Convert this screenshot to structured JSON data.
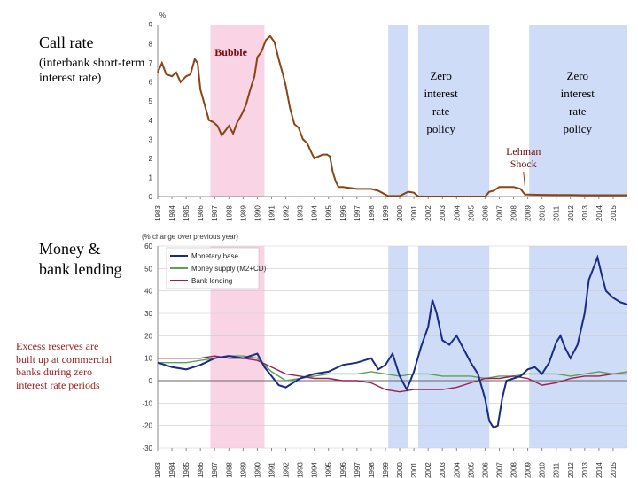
{
  "labels": {
    "call_title": "Call rate",
    "call_subtitle": "(interbank short-term interest rate)",
    "money_title": "Money & bank lending",
    "note": "Excess reserves are built up at commercial banks during zero interest rate periods"
  },
  "colors": {
    "bubble_shade": "#f9d4e4",
    "zero_shade": "#cfdcf7",
    "call_line": "#8a4416",
    "monetary_base": "#1a2b86",
    "money_supply": "#5ca055",
    "bank_lending": "#9b2050"
  },
  "chart_data": [
    {
      "type": "line",
      "title": "Call rate",
      "subtitle": "(interbank short-term interest rate)",
      "ylabel": "%",
      "ylim": [
        0,
        9
      ],
      "yticks": [
        "0",
        "1",
        "2",
        "3",
        "4",
        "5",
        "6",
        "7",
        "8",
        "9"
      ],
      "xlim": [
        1983,
        2016
      ],
      "xticks": [
        "1983",
        "1984",
        "1985",
        "1986",
        "1987",
        "1988",
        "1989",
        "1990",
        "1991",
        "1992",
        "1993",
        "1994",
        "1995",
        "1996",
        "1997",
        "1998",
        "1999",
        "2000",
        "2001",
        "2002",
        "2003",
        "2004",
        "2005",
        "2006",
        "2007",
        "2008",
        "2009",
        "2010",
        "2011",
        "2012",
        "2013",
        "2014",
        "2015"
      ],
      "shaded": [
        {
          "label": "Bubble",
          "from": 1986.7,
          "to": 1990.5,
          "kind": "bubble"
        },
        {
          "label": "Zero interest rate policy",
          "from": 1999.2,
          "to": 2000.6,
          "kind": "zero"
        },
        {
          "label": "Zero interest rate policy",
          "from": 2001.3,
          "to": 2006.3,
          "kind": "zero"
        },
        {
          "label": "Zero interest rate policy",
          "from": 2009.1,
          "to": 2016.0,
          "kind": "zero"
        }
      ],
      "annotations": {
        "bubble": "Bubble",
        "zero_1": [
          "Zero",
          "interest",
          "rate",
          "policy"
        ],
        "zero_2": [
          "Zero",
          "interest",
          "rate",
          "policy"
        ],
        "lehman": [
          "Lehman",
          "Shock"
        ]
      },
      "series": [
        {
          "name": "Call rate",
          "x": [
            1983,
            1983.3,
            1983.6,
            1984,
            1984.3,
            1984.6,
            1985,
            1985.3,
            1985.6,
            1985.8,
            1986,
            1986.3,
            1986.6,
            1986.9,
            1987.2,
            1987.5,
            1987.8,
            1988,
            1988.3,
            1988.6,
            1988.9,
            1989.2,
            1989.5,
            1989.8,
            1990,
            1990.3,
            1990.6,
            1990.9,
            1991.2,
            1991.5,
            1991.8,
            1992,
            1992.3,
            1992.6,
            1992.9,
            1993.2,
            1993.5,
            1993.8,
            1994,
            1994.3,
            1994.6,
            1994.9,
            1995.1,
            1995.3,
            1995.5,
            1995.7,
            1996,
            1997,
            1998,
            1998.5,
            1999,
            1999.2,
            2000,
            2000.6,
            2001,
            2001.3,
            2002,
            2003,
            2004,
            2005,
            2006,
            2006.3,
            2006.6,
            2007,
            2007.5,
            2008,
            2008.5,
            2008.8,
            2009,
            2010,
            2011,
            2012,
            2013,
            2014,
            2015,
            2016
          ],
          "values": [
            6.5,
            7.0,
            6.4,
            6.3,
            6.5,
            6.0,
            6.3,
            6.4,
            7.2,
            7.0,
            5.6,
            4.8,
            4.0,
            3.9,
            3.7,
            3.2,
            3.5,
            3.7,
            3.3,
            3.9,
            4.3,
            4.8,
            5.6,
            6.3,
            7.3,
            7.6,
            8.2,
            8.4,
            8.1,
            7.2,
            6.4,
            5.8,
            4.6,
            3.8,
            3.6,
            3.0,
            2.8,
            2.3,
            2.0,
            2.1,
            2.2,
            2.2,
            2.1,
            1.3,
            0.8,
            0.5,
            0.5,
            0.4,
            0.4,
            0.3,
            0.1,
            0.03,
            0.03,
            0.25,
            0.2,
            0.01,
            0.001,
            0.001,
            0.001,
            0.001,
            0.001,
            0.25,
            0.3,
            0.5,
            0.5,
            0.5,
            0.4,
            0.1,
            0.1,
            0.09,
            0.08,
            0.08,
            0.07,
            0.07,
            0.07,
            0.07
          ]
        }
      ]
    },
    {
      "type": "line",
      "ylabel": "(% change over previous year)",
      "ylim": [
        -30,
        60
      ],
      "yticks": [
        "-30",
        "-20",
        "-10",
        "0",
        "10",
        "20",
        "30",
        "40",
        "50",
        "60"
      ],
      "xlim": [
        1983,
        2016
      ],
      "xticks": [
        "1983",
        "1984",
        "1985",
        "1986",
        "1987",
        "1988",
        "1989",
        "1990",
        "1991",
        "1992",
        "1993",
        "1994",
        "1995",
        "1996",
        "1997",
        "1998",
        "1999",
        "2000",
        "2001",
        "2002",
        "2003",
        "2004",
        "2005",
        "2006",
        "2007",
        "2008",
        "2009",
        "2010",
        "2011",
        "2012",
        "2013",
        "2014",
        "2015"
      ],
      "legend": {
        "position": "top-left",
        "entries": [
          "Monetary base",
          "Money supply (M2+CD)",
          "Bank lending"
        ]
      },
      "series": [
        {
          "name": "Monetary base",
          "x": [
            1983,
            1984,
            1985,
            1986,
            1987,
            1988,
            1989,
            1990,
            1990.5,
            1991,
            1991.5,
            1992,
            1993,
            1994,
            1995,
            1996,
            1997,
            1998,
            1998.5,
            1999,
            1999.5,
            2000,
            2000.5,
            2001,
            2001.5,
            2002,
            2002.3,
            2002.6,
            2003,
            2003.5,
            2004,
            2004.5,
            2005,
            2005.5,
            2006,
            2006.3,
            2006.6,
            2006.9,
            2007.2,
            2007.5,
            2008,
            2008.5,
            2009,
            2009.5,
            2010,
            2010.5,
            2011,
            2011.3,
            2011.6,
            2012,
            2012.5,
            2013,
            2013.3,
            2013.6,
            2013.9,
            2014.2,
            2014.5,
            2015,
            2015.5,
            2016
          ],
          "values": [
            8,
            6,
            5,
            7,
            10,
            11,
            10,
            12,
            6,
            2,
            -2,
            -3,
            1,
            3,
            4,
            7,
            8,
            10,
            5,
            7,
            12,
            2,
            -4,
            4,
            15,
            24,
            36,
            30,
            18,
            16,
            20,
            14,
            8,
            3,
            -8,
            -18,
            -21,
            -20,
            -8,
            0,
            1,
            2,
            5,
            6,
            3,
            8,
            17,
            20,
            15,
            10,
            16,
            30,
            45,
            50,
            55,
            47,
            40,
            37,
            35,
            34
          ]
        },
        {
          "name": "Money supply (M2+CD)",
          "x": [
            1983,
            1984,
            1985,
            1986,
            1987,
            1988,
            1989,
            1990,
            1991,
            1992,
            1993,
            1994,
            1995,
            1996,
            1997,
            1998,
            1999,
            2000,
            2001,
            2002,
            2003,
            2004,
            2005,
            2006,
            2007,
            2008,
            2009,
            2010,
            2011,
            2012,
            2013,
            2014,
            2015,
            2016
          ],
          "values": [
            8,
            8,
            8,
            9,
            10,
            11,
            11,
            10,
            4,
            0,
            1,
            2,
            3,
            3,
            3,
            4,
            3,
            2,
            3,
            3,
            2,
            2,
            2,
            1,
            2,
            2,
            3,
            3,
            3,
            2,
            3,
            4,
            3,
            4
          ]
        },
        {
          "name": "Bank lending",
          "x": [
            1983,
            1984,
            1985,
            1986,
            1987,
            1988,
            1989,
            1990,
            1991,
            1992,
            1993,
            1994,
            1995,
            1996,
            1997,
            1998,
            1999,
            2000,
            2001,
            2002,
            2003,
            2004,
            2005,
            2006,
            2007,
            2008,
            2009,
            2010,
            2011,
            2012,
            2013,
            2014,
            2015,
            2016
          ],
          "values": [
            10,
            10,
            10,
            10,
            11,
            10,
            10,
            9,
            6,
            3,
            2,
            1,
            1,
            0,
            0,
            -1,
            -4,
            -5,
            -4,
            -4,
            -4,
            -3,
            -1,
            1,
            1,
            2,
            1,
            -2,
            -1,
            1,
            2,
            2,
            3,
            3
          ]
        }
      ]
    }
  ]
}
